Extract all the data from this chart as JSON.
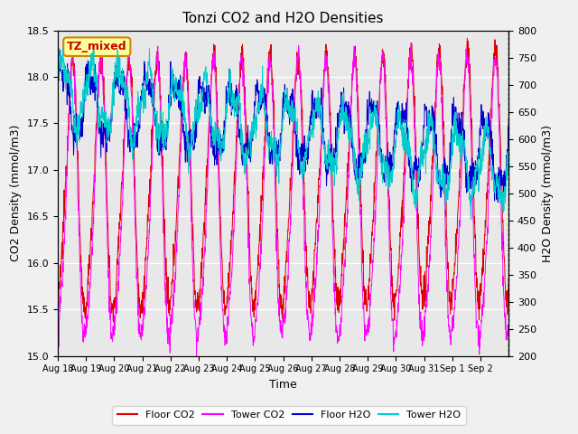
{
  "title": "Tonzi CO2 and H2O Densities",
  "xlabel": "Time",
  "ylabel_left": "CO2 Density (mmol/m3)",
  "ylabel_right": "H2O Density (mmol/m3)",
  "ylim_left": [
    15.0,
    18.5
  ],
  "ylim_right": [
    200,
    800
  ],
  "annotation_text": "TZ_mixed",
  "annotation_color": "#cc0000",
  "annotation_bg": "#ffff99",
  "annotation_border": "#cc8800",
  "x_tick_labels": [
    "Aug 18",
    "Aug 19",
    "Aug 20",
    "Aug 21",
    "Aug 22",
    "Aug 23",
    "Aug 24",
    "Aug 25",
    "Aug 26",
    "Aug 27",
    "Aug 28",
    "Aug 29",
    "Aug 30",
    "Aug 31",
    "Sep 1",
    "Sep 2"
  ],
  "n_points": 1600,
  "n_days": 16,
  "colors": {
    "floor_co2": "#dd0000",
    "tower_co2": "#ff00ff",
    "floor_h2o": "#0000cc",
    "tower_h2o": "#00cccc"
  },
  "legend_labels": [
    "Floor CO2",
    "Tower CO2",
    "Floor H2O",
    "Tower H2O"
  ],
  "fig_bg_color": "#f0f0f0",
  "plot_bg": "#e8e8e8",
  "grid_color": "#ffffff"
}
